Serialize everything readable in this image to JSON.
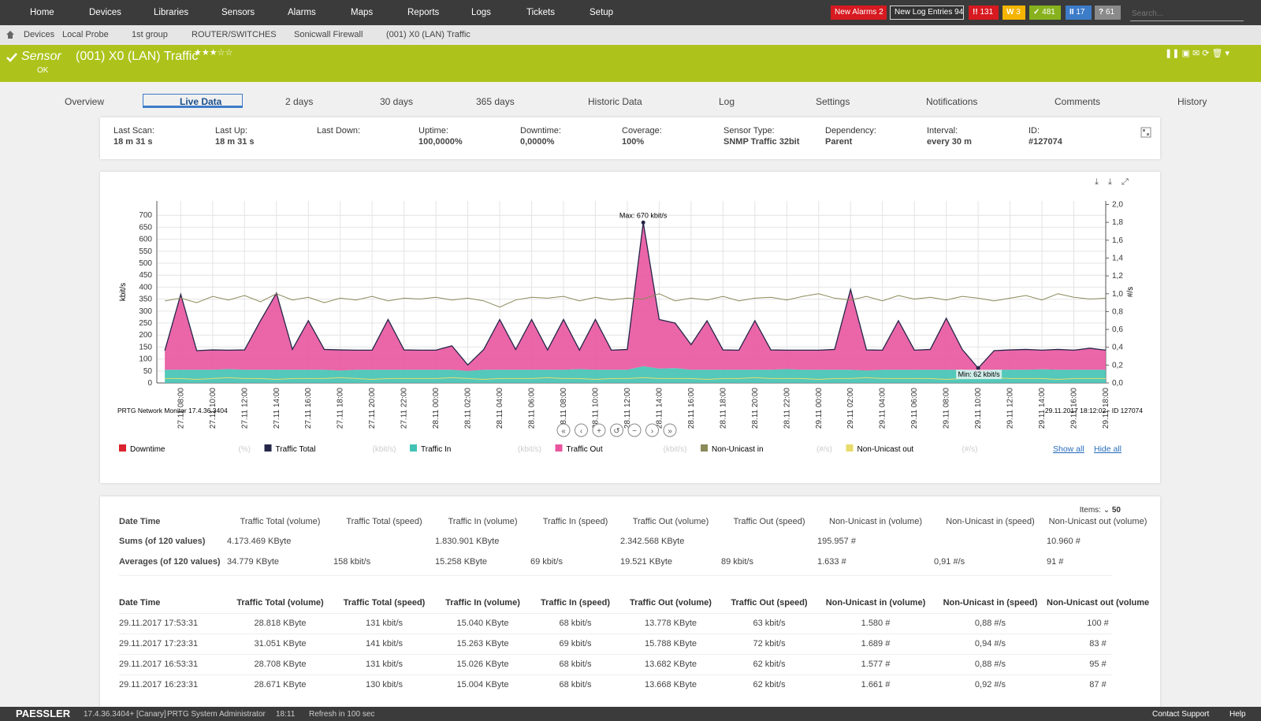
{
  "nav": {
    "items": [
      "Home",
      "Devices",
      "Libraries",
      "Sensors",
      "Alarms",
      "Maps",
      "Reports",
      "Logs",
      "Tickets",
      "Setup"
    ],
    "alarms": {
      "label": "New Alarms",
      "value": 2
    },
    "log_entries": {
      "label": "New Log Entries",
      "value": 94
    },
    "counters": [
      {
        "label": "!!",
        "value": 131,
        "color": "#d71920"
      },
      {
        "label": "W",
        "value": 3,
        "color": "#f5b400"
      },
      {
        "label": "✓",
        "value": 481,
        "color": "#87b21e"
      },
      {
        "label": "II",
        "value": 17,
        "color": "#3d7cc9"
      },
      {
        "label": "?",
        "value": 61,
        "color": "#8a8a8a"
      }
    ],
    "search": "Search..."
  },
  "breadcrumbs": [
    "Devices",
    "Local Probe",
    "1st group",
    "ROUTER/SWITCHES",
    "Sonicwall Firewall",
    "(001) X0 (LAN) Traffic"
  ],
  "sensor": {
    "prefix": "Sensor",
    "name": "(001) X0 (LAN) Traffic",
    "status": "OK"
  },
  "tabs": [
    "Overview",
    "Live Data",
    "2 days",
    "30 days",
    "365 days",
    "Historic Data",
    "Log",
    "Settings",
    "Notifications",
    "Comments",
    "History"
  ],
  "info": [
    {
      "label": "Last Scan:",
      "value": "18 m 31 s"
    },
    {
      "label": "Last Up:",
      "value": "18 m 31 s"
    },
    {
      "label": "Last Down:"
    },
    {
      "label": "Uptime:",
      "value": "100,0000%"
    },
    {
      "label": "Downtime:",
      "value": "0,0000%"
    },
    {
      "label": "Coverage:",
      "value": "100%"
    },
    {
      "label": "Sensor Type:",
      "value": "SNMP Traffic 32bit"
    },
    {
      "label": "Dependency:",
      "value": "Parent"
    },
    {
      "label": "Interval:",
      "value": "every 30 m"
    },
    {
      "label": "ID:",
      "value": "#127074"
    }
  ],
  "chart_data": {
    "type": "line",
    "y_label": "kbit/s",
    "y2_label": "#/s",
    "grid": true,
    "note_left": "PRTG Network Monitor 17.4.36.3404",
    "note_right": "29.11.2017 18:12:02 - ID 127074",
    "annotations": {
      "max": "Max: 670 kbit/s",
      "min": "Min: 62 kbit/s"
    },
    "xlim": [
      0.5,
      60
    ],
    "ylim": [
      0,
      760
    ],
    "y2lim": [
      0,
      2.04
    ],
    "xticks": [
      {
        "value": 2,
        "label": "27.11 08:00"
      },
      {
        "value": 4,
        "label": "27.11 10:00"
      },
      {
        "value": 6,
        "label": "27.11 12:00"
      },
      {
        "value": 8,
        "label": "27.11 14:00"
      },
      {
        "value": 10,
        "label": "27.11 16:00"
      },
      {
        "value": 12,
        "label": "27.11 18:00"
      },
      {
        "value": 14,
        "label": "27.11 20:00"
      },
      {
        "value": 16,
        "label": "27.11 22:00"
      },
      {
        "value": 18,
        "label": "28.11 00:00"
      },
      {
        "value": 20,
        "label": "28.11 02:00"
      },
      {
        "value": 22,
        "label": "28.11 04:00"
      },
      {
        "value": 24,
        "label": "28.11 06:00"
      },
      {
        "value": 26,
        "label": "28.11 08:00"
      },
      {
        "value": 28,
        "label": "28.11 10:00"
      },
      {
        "value": 30,
        "label": "28.11 12:00"
      },
      {
        "value": 32,
        "label": "28.11 14:00"
      },
      {
        "value": 34,
        "label": "28.11 16:00"
      },
      {
        "value": 36,
        "label": "28.11 18:00"
      },
      {
        "value": 38,
        "label": "28.11 20:00"
      },
      {
        "value": 40,
        "label": "28.11 22:00"
      },
      {
        "value": 42,
        "label": "29.11 00:00"
      },
      {
        "value": 44,
        "label": "29.11 02:00"
      },
      {
        "value": 46,
        "label": "29.11 04:00"
      },
      {
        "value": 48,
        "label": "29.11 06:00"
      },
      {
        "value": 50,
        "label": "29.11 08:00"
      },
      {
        "value": 52,
        "label": "29.11 10:00"
      },
      {
        "value": 54,
        "label": "29.11 12:00"
      },
      {
        "value": 56,
        "label": "29.11 14:00"
      },
      {
        "value": 58,
        "label": "29.11 16:00"
      },
      {
        "value": 60,
        "label": "29.11 18:00"
      }
    ],
    "yticks": [
      0,
      50,
      100,
      150,
      200,
      250,
      300,
      350,
      400,
      450,
      500,
      550,
      600,
      650,
      700
    ],
    "y2ticks": [
      {
        "value": 0,
        "label": "0,0"
      },
      {
        "value": 0.2,
        "label": "0,2"
      },
      {
        "value": 0.4,
        "label": "0,4"
      },
      {
        "value": 0.6,
        "label": "0,6"
      },
      {
        "value": 0.8,
        "label": "0,8"
      },
      {
        "value": 1,
        "label": "1,0"
      },
      {
        "value": 1.2,
        "label": "1,2"
      },
      {
        "value": 1.4,
        "label": "1,4"
      },
      {
        "value": 1.6,
        "label": "1,6"
      },
      {
        "value": 1.8,
        "label": "1,8"
      },
      {
        "value": 2,
        "label": "2,0"
      }
    ],
    "x": [
      1,
      2,
      3,
      4,
      5,
      6,
      7,
      8,
      9,
      10,
      11,
      12,
      13,
      14,
      15,
      16,
      17,
      18,
      19,
      20,
      21,
      22,
      23,
      24,
      25,
      26,
      27,
      28,
      29,
      30,
      31,
      32,
      33,
      34,
      35,
      36,
      37,
      38,
      39,
      40,
      41,
      42,
      43,
      44,
      45,
      46,
      47,
      48,
      49,
      50,
      51,
      52,
      53,
      54,
      55,
      56,
      57,
      58,
      59,
      60
    ],
    "series": [
      {
        "name": "Downtime",
        "unit": "(%)",
        "color": "#d9232e",
        "values": [
          null,
          null,
          null,
          null,
          null,
          null,
          null,
          null,
          null,
          null,
          null,
          null,
          null,
          null,
          null,
          null,
          null,
          null,
          null,
          null,
          null,
          null,
          null,
          null,
          null,
          null,
          null,
          null,
          null,
          null,
          null,
          null,
          null,
          null,
          null,
          null,
          null,
          null,
          null,
          null,
          null,
          null,
          null,
          null,
          null,
          null,
          null,
          null,
          null,
          null,
          null,
          null,
          null,
          null,
          null,
          null,
          null,
          null,
          null,
          null
        ]
      },
      {
        "name": "Traffic Total",
        "unit": "(kbit/s)",
        "color": "#26264a",
        "values": [
          135,
          370,
          135,
          138,
          137,
          138,
          260,
          375,
          140,
          260,
          140,
          138,
          137,
          137,
          265,
          138,
          137,
          137,
          155,
          75,
          140,
          265,
          140,
          265,
          138,
          265,
          137,
          265,
          137,
          140,
          670,
          265,
          250,
          160,
          260,
          138,
          137,
          260,
          138,
          137,
          137,
          137,
          140,
          390,
          138,
          137,
          260,
          137,
          140,
          270,
          140,
          62,
          135,
          138,
          140,
          137,
          140,
          137,
          145,
          137
        ]
      },
      {
        "name": "Traffic In",
        "unit": "(kbit/s)",
        "color": "#41c3b4",
        "area": true,
        "values": [
          55,
          55,
          55,
          55,
          58,
          55,
          55,
          55,
          55,
          55,
          55,
          52,
          55,
          55,
          55,
          55,
          55,
          55,
          55,
          50,
          55,
          55,
          55,
          55,
          55,
          55,
          58,
          55,
          55,
          55,
          70,
          60,
          62,
          55,
          55,
          55,
          55,
          55,
          55,
          58,
          55,
          55,
          55,
          55,
          52,
          55,
          55,
          55,
          55,
          55,
          55,
          45,
          55,
          55,
          55,
          57,
          55,
          55,
          55,
          55
        ]
      },
      {
        "name": "Traffic Out",
        "unit": "(kbit/s)",
        "color": "#e8559e",
        "area": true,
        "stack": true,
        "values": [
          80,
          315,
          80,
          83,
          79,
          83,
          205,
          320,
          85,
          205,
          85,
          86,
          82,
          82,
          210,
          83,
          82,
          82,
          100,
          25,
          85,
          210,
          85,
          210,
          83,
          210,
          79,
          210,
          82,
          85,
          600,
          205,
          188,
          105,
          205,
          83,
          82,
          205,
          83,
          79,
          82,
          82,
          85,
          335,
          86,
          82,
          205,
          82,
          85,
          215,
          85,
          17,
          80,
          83,
          85,
          80,
          85,
          82,
          90,
          82
        ]
      },
      {
        "name": "Non-Unicast in",
        "unit": "(#/s)",
        "color": "#8b8a5a",
        "axis": "y2",
        "values": [
          0.92,
          0.95,
          0.9,
          0.97,
          0.93,
          0.98,
          0.91,
          1.0,
          0.93,
          0.96,
          0.9,
          0.95,
          0.93,
          0.97,
          0.92,
          0.95,
          0.94,
          0.96,
          0.93,
          0.95,
          0.92,
          0.85,
          0.93,
          0.96,
          0.95,
          0.97,
          0.92,
          0.96,
          0.93,
          0.95,
          0.94,
          1.0,
          0.92,
          0.95,
          0.93,
          0.97,
          0.92,
          0.95,
          0.96,
          0.93,
          0.97,
          1.0,
          0.95,
          0.93,
          0.97,
          0.92,
          0.98,
          0.94,
          0.96,
          0.93,
          0.97,
          0.95,
          0.92,
          0.95,
          0.98,
          0.93,
          1.0,
          0.96,
          0.94,
          0.95
        ]
      },
      {
        "name": "Non-Unicast out",
        "unit": "(#/s)",
        "color": "#e8dc6a",
        "axis": "y2",
        "values": [
          0.05,
          0.05,
          0.04,
          0.05,
          0.06,
          0.05,
          0.05,
          0.04,
          0.05,
          0.05,
          0.05,
          0.06,
          0.05,
          0.04,
          0.05,
          0.05,
          0.05,
          0.05,
          0.06,
          0.05,
          0.04,
          0.05,
          0.05,
          0.05,
          0.06,
          0.05,
          0.05,
          0.04,
          0.05,
          0.05,
          0.06,
          0.05,
          0.05,
          0.05,
          0.04,
          0.05,
          0.05,
          0.06,
          0.05,
          0.05,
          0.05,
          0.04,
          0.05,
          0.05,
          0.06,
          0.05,
          0.05,
          0.05,
          0.05,
          0.04,
          0.05,
          0.05,
          0.06,
          0.05,
          0.05,
          0.05,
          0.04,
          0.05,
          0.05,
          0.05
        ]
      }
    ],
    "legend_links": [
      "Show all",
      "Hide all"
    ]
  },
  "table": {
    "items_label": "Items:",
    "items": 50,
    "summary_header": [
      "Date Time",
      "Traffic Total (volume)",
      "Traffic Total (speed)",
      "Traffic In (volume)",
      "Traffic In (speed)",
      "Traffic Out (volume)",
      "Traffic Out (speed)",
      "Non-Unicast in (volume)",
      "Non-Unicast in (speed)",
      "Non-Unicast out (volume)"
    ],
    "summary": [
      [
        "Sums (of 120 values)",
        "4.173.469 KByte",
        null,
        "1.830.901 KByte",
        null,
        "2.342.568 KByte",
        null,
        "195.957 #",
        null,
        "10.960 #"
      ],
      [
        "Averages (of 120 values)",
        "34.779 KByte",
        "158 kbit/s",
        "15.258 KByte",
        "69 kbit/s",
        "19.521 KByte",
        "89 kbit/s",
        "1.633 #",
        "0,91 #/s",
        "91 #"
      ]
    ],
    "header": [
      "Date Time",
      "Traffic Total (volume)",
      "Traffic Total (speed)",
      "Traffic In (volume)",
      "Traffic In (speed)",
      "Traffic Out (volume)",
      "Traffic Out (speed)",
      "Non-Unicast in (volume)",
      "Non-Unicast in (speed)",
      "Non-Unicast out (volume)"
    ],
    "rows": [
      [
        "29.11.2017 17:53:31",
        "28.818 KByte",
        "131 kbit/s",
        "15.040 KByte",
        "68 kbit/s",
        "13.778 KByte",
        "63 kbit/s",
        "1.580 #",
        "0,88 #/s",
        "100 #"
      ],
      [
        "29.11.2017 17:23:31",
        "31.051 KByte",
        "141 kbit/s",
        "15.263 KByte",
        "69 kbit/s",
        "15.788 KByte",
        "72 kbit/s",
        "1.689 #",
        "0,94 #/s",
        "83 #"
      ],
      [
        "29.11.2017 16:53:31",
        "28.708 KByte",
        "131 kbit/s",
        "15.026 KByte",
        "68 kbit/s",
        "13.682 KByte",
        "62 kbit/s",
        "1.577 #",
        "0,88 #/s",
        "95 #"
      ],
      [
        "29.11.2017 16:23:31",
        "28.671 KByte",
        "130 kbit/s",
        "15.004 KByte",
        "68 kbit/s",
        "13.668 KByte",
        "62 kbit/s",
        "1.661 #",
        "0,92 #/s",
        "87 #"
      ]
    ]
  },
  "footer": {
    "brand": "PAESSLER",
    "version": "17.4.36.3404+ [Canary]",
    "user": "PRTG System Administrator",
    "time": "18:11",
    "refresh": "Refresh in 100 sec",
    "support": "Contact Support",
    "help": "Help"
  }
}
